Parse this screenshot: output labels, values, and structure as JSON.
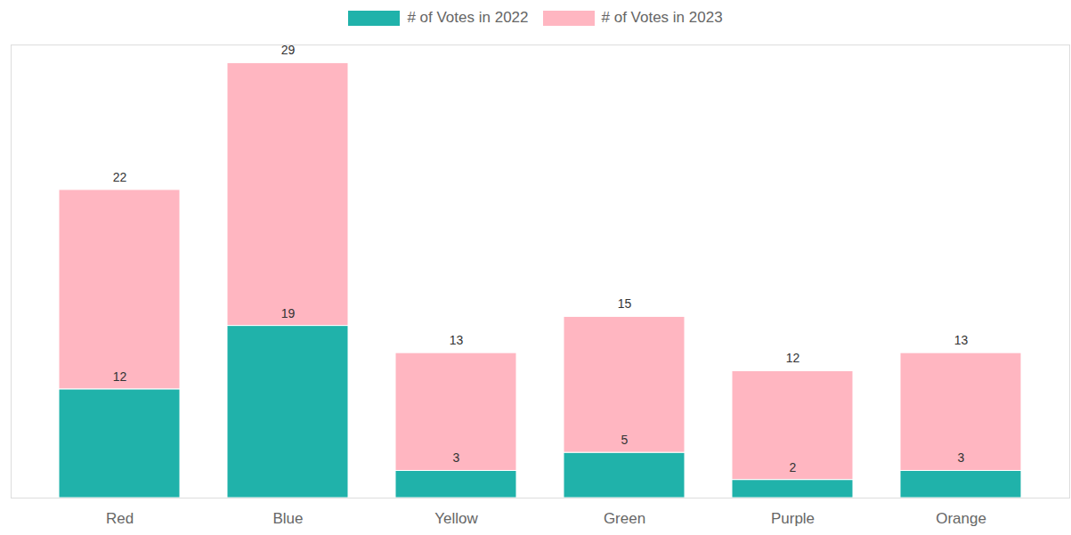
{
  "chart_data": {
    "type": "bar",
    "stacked": true,
    "data_labels": true,
    "tick_labels": "x",
    "legend": "top",
    "categories": [
      "Red",
      "Blue",
      "Yellow",
      "Green",
      "Purple",
      "Orange"
    ],
    "series": [
      {
        "name": "# of Votes in 2022",
        "color": "#20b2aa",
        "values": [
          12,
          19,
          3,
          5,
          2,
          3
        ]
      },
      {
        "name": "# of Votes in 2023",
        "color": "#ffb6c1",
        "values": [
          22,
          29,
          13,
          15,
          12,
          13
        ]
      }
    ],
    "ylim": [
      0,
      50
    ]
  }
}
